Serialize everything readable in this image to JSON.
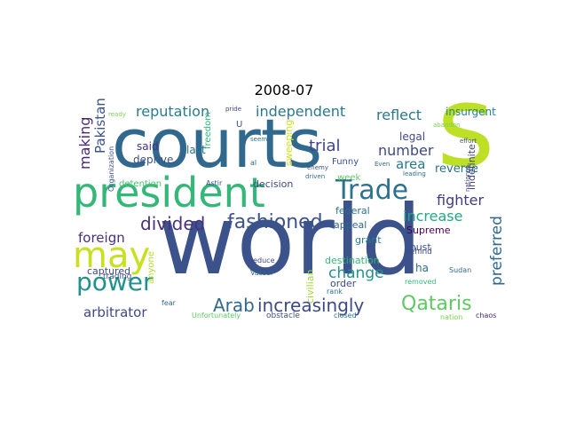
{
  "figure": {
    "title": "2008-07"
  },
  "words": [
    {
      "text": "courts",
      "color": "#31688e"
    },
    {
      "text": "world",
      "color": "#3b528b"
    },
    {
      "text": "s",
      "color": "#bddf26"
    },
    {
      "text": "president",
      "color": "#35b779"
    },
    {
      "text": "may",
      "color": "#c8e020"
    },
    {
      "text": "Trade",
      "color": "#2c728e"
    },
    {
      "text": "power",
      "color": "#21918c"
    },
    {
      "text": "fashioned",
      "color": "#3b528b"
    },
    {
      "text": "divided",
      "color": "#46327e"
    },
    {
      "text": "increasingly",
      "color": "#3e4989"
    },
    {
      "text": "Qataris",
      "color": "#5ec962"
    },
    {
      "text": "Arab",
      "color": "#31688e"
    },
    {
      "text": "independent",
      "color": "#2a788e"
    },
    {
      "text": "reputation",
      "color": "#287c8e"
    },
    {
      "text": "reflect",
      "color": "#2a788e"
    },
    {
      "text": "trial",
      "color": "#414487"
    },
    {
      "text": "fighter",
      "color": "#443983"
    },
    {
      "text": "arbitrator",
      "color": "#3e4989"
    },
    {
      "text": "foreign",
      "color": "#46327e"
    },
    {
      "text": "change",
      "color": "#21918c"
    },
    {
      "text": "increase",
      "color": "#22a884"
    },
    {
      "text": "number",
      "color": "#3e4989"
    },
    {
      "text": "area",
      "color": "#2a788e"
    },
    {
      "text": "making",
      "color": "#482878"
    },
    {
      "text": "Pakistan",
      "color": "#3b528b"
    },
    {
      "text": "preferred",
      "color": "#31688e"
    },
    {
      "text": "insurgent",
      "color": "#26828e"
    },
    {
      "text": "legal",
      "color": "#3e4989"
    },
    {
      "text": "reverse",
      "color": "#2c728e"
    },
    {
      "text": "indefinite",
      "color": "#414487"
    },
    {
      "text": "said",
      "color": "#46327e"
    },
    {
      "text": "deprive",
      "color": "#3b528b"
    },
    {
      "text": "last",
      "color": "#2c728e"
    },
    {
      "text": "decision",
      "color": "#3e4989"
    },
    {
      "text": "captured",
      "color": "#3e4989"
    },
    {
      "text": "federal",
      "color": "#2c728e"
    },
    {
      "text": "appeal",
      "color": "#31688e"
    },
    {
      "text": "Supreme",
      "color": "#440154"
    },
    {
      "text": "grant",
      "color": "#287c8e"
    },
    {
      "text": "must",
      "color": "#3b528b"
    },
    {
      "text": "ha",
      "color": "#2c728e"
    },
    {
      "text": "destination",
      "color": "#35b779"
    },
    {
      "text": "order",
      "color": "#3e4989"
    },
    {
      "text": "civilian",
      "color": "#a0da39"
    },
    {
      "text": "anyone",
      "color": "#b5de2b"
    },
    {
      "text": "Funny",
      "color": "#3b528b"
    },
    {
      "text": "week",
      "color": "#5ec962"
    },
    {
      "text": "sweeping",
      "color": "#d0e11c"
    },
    {
      "text": "freedom",
      "color": "#2fb47c"
    },
    {
      "text": "detention",
      "color": "#4ac16d"
    },
    {
      "text": "behind",
      "color": "#3e4989"
    },
    {
      "text": "Sudan",
      "color": "#31688e"
    },
    {
      "text": "trading",
      "color": "#3b528b"
    },
    {
      "text": "reduce",
      "color": "#3e4989"
    },
    {
      "text": "Vassar",
      "color": "#31688e"
    },
    {
      "text": "rank",
      "color": "#2c728e"
    },
    {
      "text": "removed",
      "color": "#35b779"
    },
    {
      "text": "obstacle",
      "color": "#3b528b"
    },
    {
      "text": "closed",
      "color": "#2c728e"
    },
    {
      "text": "nation",
      "color": "#7ad151"
    },
    {
      "text": "chaos",
      "color": "#482878"
    },
    {
      "text": "Unfortunately",
      "color": "#5ec962"
    },
    {
      "text": "fear",
      "color": "#31688e"
    },
    {
      "text": "Astir",
      "color": "#3b528b"
    },
    {
      "text": "Organization",
      "color": "#3b528b"
    },
    {
      "text": "ready",
      "color": "#7ad151"
    },
    {
      "text": "pride",
      "color": "#3e4989"
    },
    {
      "text": "U",
      "color": "#3b528b"
    },
    {
      "text": "seem",
      "color": "#2c728e"
    },
    {
      "text": "al",
      "color": "#31688e"
    },
    {
      "text": "enemy",
      "color": "#3b528b"
    },
    {
      "text": "driven",
      "color": "#2c728e"
    },
    {
      "text": "Even",
      "color": "#31688e"
    },
    {
      "text": "leading",
      "color": "#2c728e"
    },
    {
      "text": "abandon",
      "color": "#7ad151"
    },
    {
      "text": "effort",
      "color": "#3b528b"
    },
    {
      "text": "national",
      "color": "#3e4989"
    }
  ]
}
